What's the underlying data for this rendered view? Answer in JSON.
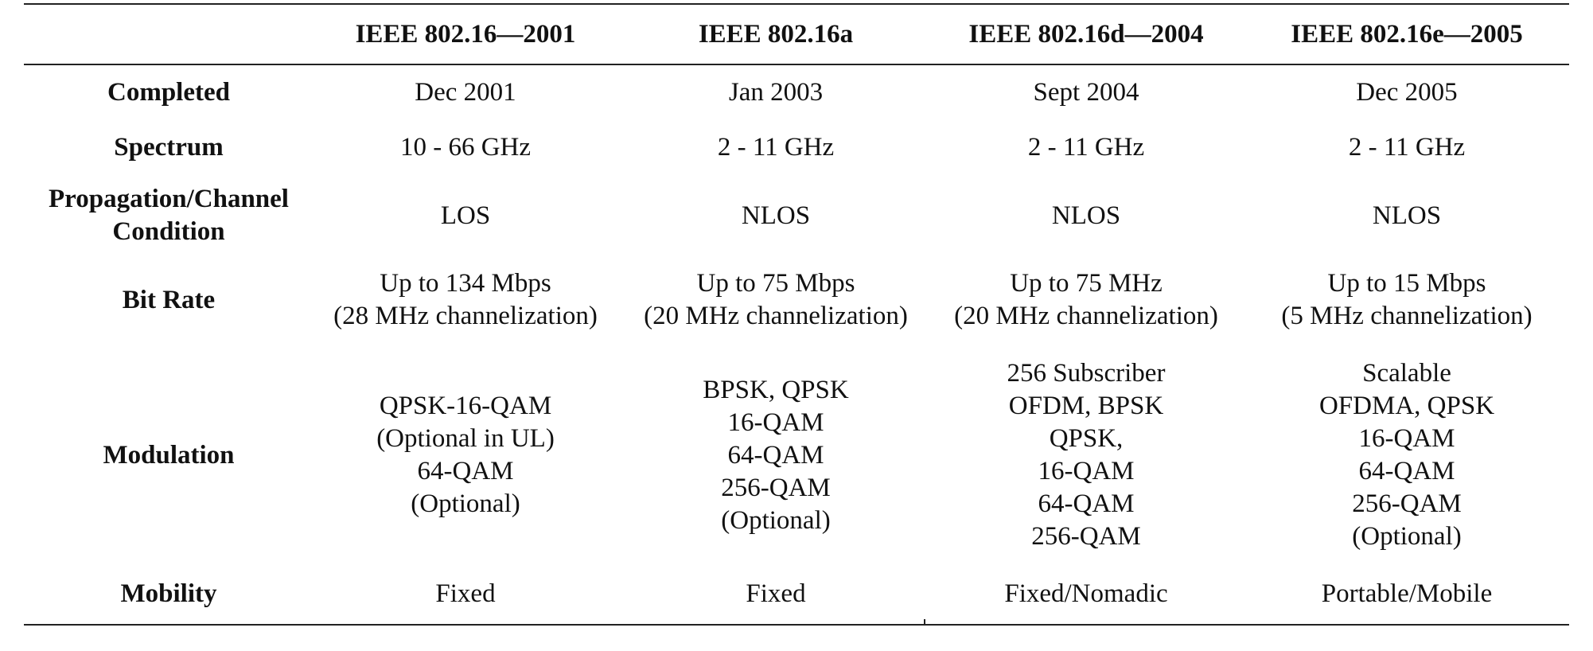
{
  "table": {
    "header": {
      "corner": "",
      "columns": [
        "IEEE 802.16—2001",
        "IEEE 802.16a",
        "IEEE 802.16d—2004",
        "IEEE 802.16e—2005"
      ]
    },
    "rows": [
      {
        "label": [
          "Completed"
        ],
        "cells": [
          [
            "Dec 2001"
          ],
          [
            "Jan 2003"
          ],
          [
            "Sept 2004"
          ],
          [
            "Dec 2005"
          ]
        ]
      },
      {
        "label": [
          "Spectrum"
        ],
        "cells": [
          [
            "10 - 66 GHz"
          ],
          [
            "2 - 11 GHz"
          ],
          [
            "2 - 11 GHz"
          ],
          [
            "2 - 11 GHz"
          ]
        ]
      },
      {
        "label": [
          "Propagation/Channel",
          "Condition"
        ],
        "cells": [
          [
            "LOS"
          ],
          [
            "NLOS"
          ],
          [
            "NLOS"
          ],
          [
            "NLOS"
          ]
        ]
      },
      {
        "label": [
          "Bit Rate"
        ],
        "cells": [
          [
            "Up to 134 Mbps",
            "(28 MHz channelization)"
          ],
          [
            "Up to 75 Mbps",
            "(20 MHz channelization)"
          ],
          [
            "Up to 75 MHz",
            "(20 MHz channelization)"
          ],
          [
            "Up to 15 Mbps",
            "(5 MHz channelization)"
          ]
        ]
      },
      {
        "label": [
          "Modulation"
        ],
        "cells": [
          [
            "QPSK-16-QAM",
            "(Optional in UL)",
            "64-QAM",
            "(Optional)"
          ],
          [
            "BPSK, QPSK",
            "16-QAM",
            "64-QAM",
            "256-QAM",
            "(Optional)"
          ],
          [
            "256 Subscriber",
            "OFDM, BPSK",
            "QPSK,",
            "16-QAM",
            "64-QAM",
            "256-QAM"
          ],
          [
            "Scalable",
            "OFDMA, QPSK",
            "16-QAM",
            "64-QAM",
            "256-QAM",
            "(Optional)"
          ]
        ]
      },
      {
        "label": [
          "Mobility"
        ],
        "cells": [
          [
            "Fixed"
          ],
          [
            "Fixed"
          ],
          [
            "Fixed/Nomadic"
          ],
          [
            "Portable/Mobile"
          ]
        ]
      }
    ]
  }
}
